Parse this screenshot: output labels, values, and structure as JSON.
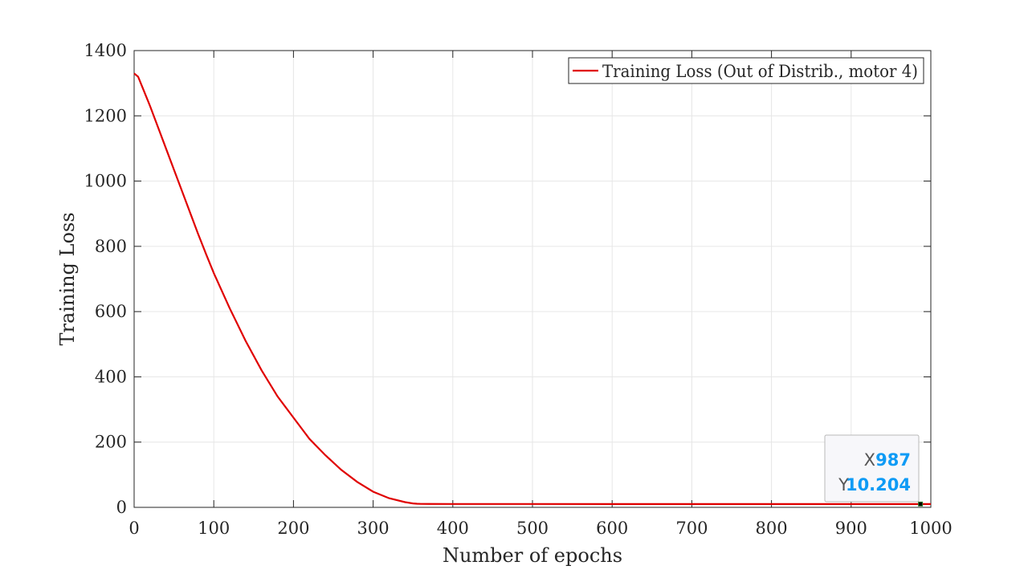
{
  "chart_data": {
    "type": "line",
    "title": "",
    "xlabel": "Number of epochs",
    "ylabel": "Training Loss",
    "xlim": [
      0,
      1000
    ],
    "ylim": [
      0,
      1400
    ],
    "xticks": [
      "0",
      "100",
      "200",
      "300",
      "400",
      "500",
      "600",
      "700",
      "800",
      "900",
      "1000"
    ],
    "yticks": [
      "0",
      "200",
      "400",
      "600",
      "800",
      "1000",
      "1200",
      "1400"
    ],
    "grid": true,
    "legend_position": "top-right",
    "series": [
      {
        "name": "Training Loss (Out of Distrib., motor 4)",
        "color": "#e00000",
        "x": [
          0,
          5,
          10,
          20,
          30,
          40,
          50,
          60,
          70,
          80,
          90,
          100,
          120,
          140,
          160,
          180,
          200,
          220,
          240,
          260,
          280,
          300,
          320,
          340,
          350,
          355,
          360,
          370,
          400,
          500,
          600,
          700,
          800,
          900,
          987,
          1000
        ],
        "y": [
          1330,
          1320,
          1290,
          1230,
          1165,
          1100,
          1035,
          970,
          905,
          840,
          778,
          718,
          610,
          510,
          420,
          340,
          275,
          210,
          160,
          115,
          78,
          48,
          28,
          16,
          12,
          11,
          10.6,
          10.4,
          10.3,
          10.25,
          10.22,
          10.21,
          10.21,
          10.205,
          10.204,
          10.204
        ]
      }
    ],
    "datatip": {
      "x_key": "X",
      "x_value": "987",
      "y_key": "Y",
      "y_value": "10.204",
      "value_color": "#0f9bf5"
    }
  }
}
